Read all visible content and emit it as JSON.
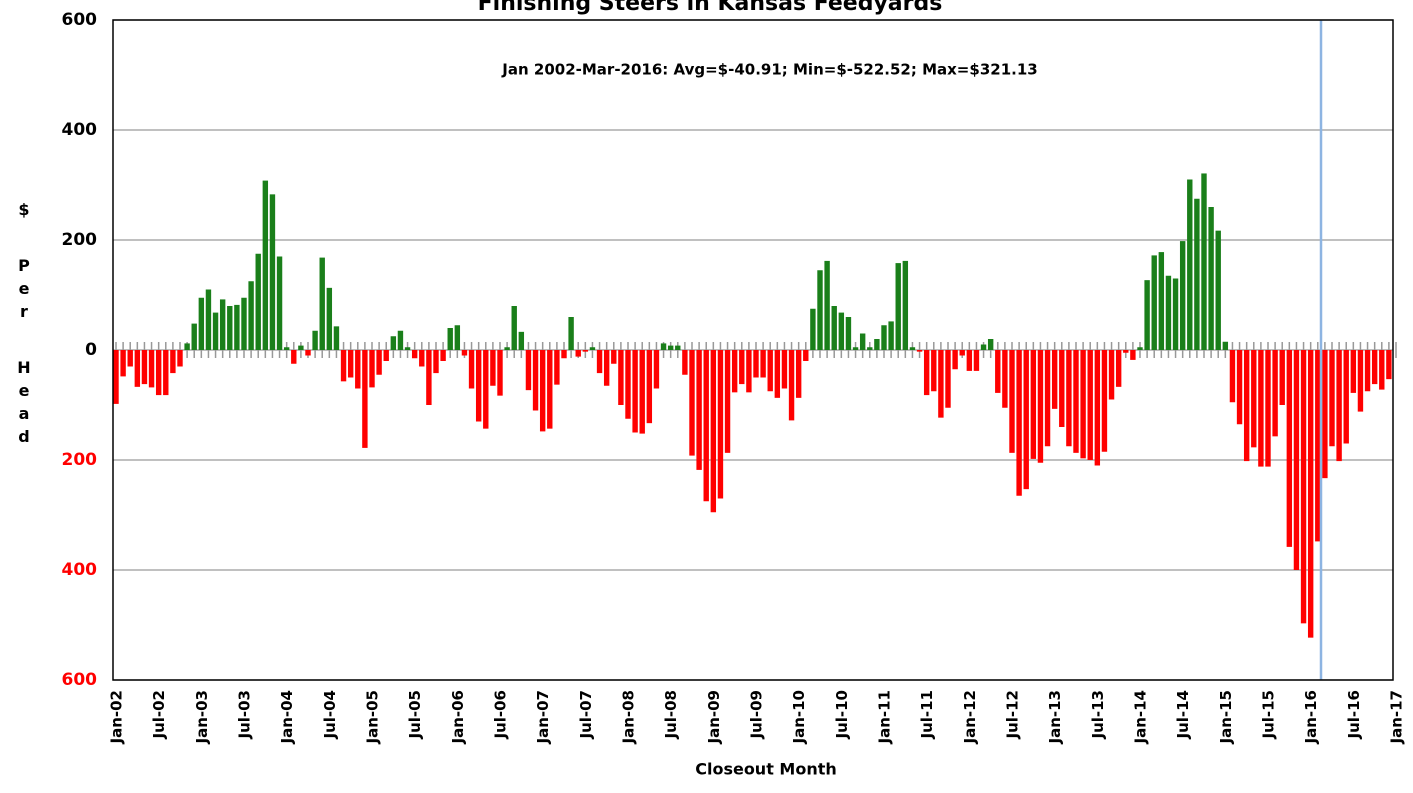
{
  "chart_data": {
    "type": "bar",
    "title": "Finishing Steers in Kansas Feedyards",
    "subtitle": "Jan 2002-Mar-2016:  Avg=$-40.91; Min=$-522.52; Max=$321.13",
    "x_label": "Closeout Month",
    "y_label": "$ Per Head",
    "categories": [
      "Jan-02",
      null,
      null,
      null,
      null,
      null,
      "Jul-02",
      null,
      null,
      null,
      null,
      null,
      "Jan-03",
      null,
      null,
      null,
      null,
      null,
      "Jul-03",
      null,
      null,
      null,
      null,
      null,
      "Jan-04",
      null,
      null,
      null,
      null,
      null,
      "Jul-04",
      null,
      null,
      null,
      null,
      null,
      "Jan-05",
      null,
      null,
      null,
      null,
      null,
      "Jul-05",
      null,
      null,
      null,
      null,
      null,
      "Jan-06",
      null,
      null,
      null,
      null,
      null,
      "Jul-06",
      null,
      null,
      null,
      null,
      null,
      "Jan-07",
      null,
      null,
      null,
      null,
      null,
      "Jul-07",
      null,
      null,
      null,
      null,
      null,
      "Jan-08",
      null,
      null,
      null,
      null,
      null,
      "Jul-08",
      null,
      null,
      null,
      null,
      null,
      "Jan-09",
      null,
      null,
      null,
      null,
      null,
      "Jul-09",
      null,
      null,
      null,
      null,
      null,
      "Jan-10",
      null,
      null,
      null,
      null,
      null,
      "Jul-10",
      null,
      null,
      null,
      null,
      null,
      "Jan-11",
      null,
      null,
      null,
      null,
      null,
      "Jul-11",
      null,
      null,
      null,
      null,
      null,
      "Jan-12",
      null,
      null,
      null,
      null,
      null,
      "Jul-12",
      null,
      null,
      null,
      null,
      null,
      "Jan-13",
      null,
      null,
      null,
      null,
      null,
      "Jul-13",
      null,
      null,
      null,
      null,
      null,
      "Jan-14",
      null,
      null,
      null,
      null,
      null,
      "Jul-14",
      null,
      null,
      null,
      null,
      null,
      "Jan-15",
      null,
      null,
      null,
      null,
      null,
      "Jul-15",
      null,
      null,
      null,
      null,
      null,
      "Jan-16",
      null,
      null,
      null,
      null,
      null,
      "Jul-16",
      null,
      null,
      null,
      null,
      null,
      "Jan-17"
    ],
    "values": [
      -98,
      -48,
      -30,
      -67,
      -62,
      -68,
      -82,
      -82,
      -42,
      -30,
      12,
      48,
      95,
      110,
      68,
      92,
      80,
      82,
      95,
      125,
      175,
      308,
      283,
      170,
      5,
      -25,
      8,
      -10,
      35,
      168,
      113,
      43,
      -57,
      -50,
      -70,
      -178,
      -68,
      -45,
      -20,
      25,
      35,
      5,
      -15,
      -30,
      -100,
      -42,
      -20,
      40,
      45,
      -10,
      -70,
      -130,
      -143,
      -65,
      -83,
      5,
      80,
      33,
      -73,
      -110,
      -148,
      -143,
      -63,
      -15,
      60,
      -12,
      -3,
      5,
      -42,
      -65,
      -25,
      -100,
      -125,
      -150,
      -152,
      -133,
      -70,
      12,
      8,
      8,
      -45,
      -192,
      -218,
      -275,
      -295,
      -270,
      -187,
      -77,
      -62,
      -77,
      -50,
      -50,
      -75,
      -87,
      -70,
      -128,
      -87,
      -20,
      75,
      145,
      162,
      80,
      68,
      60,
      5,
      30,
      5,
      20,
      45,
      52,
      158,
      162,
      5,
      -3,
      -82,
      -75,
      -123,
      -105,
      -35,
      -10,
      -38,
      -38,
      10,
      20,
      -78,
      -105,
      -187,
      -265,
      -253,
      -198,
      -205,
      -175,
      -107,
      -140,
      -175,
      -187,
      -197,
      -200,
      -210,
      -185,
      -90,
      -67,
      -5,
      -18,
      5,
      127,
      172,
      178,
      135,
      130,
      198,
      310,
      275,
      321,
      260,
      217,
      15,
      -95,
      -135,
      -202,
      -177,
      -212,
      -212,
      -157,
      -100,
      -358,
      -400,
      -497,
      -523,
      -348,
      -233,
      -175,
      -202,
      -170,
      -78,
      -112,
      -75,
      -62,
      -72,
      -53,
      null
    ],
    "positive_color": "#1a7f1a",
    "negative_color": "#ff0000",
    "negative_tick_color": "#ff0000",
    "ylim": [
      -600,
      600
    ],
    "yticks": [
      {
        "value": -600,
        "label": "600"
      },
      {
        "value": -400,
        "label": "400"
      },
      {
        "value": -200,
        "label": "200"
      },
      0,
      200,
      400,
      600
    ],
    "grid": true
  }
}
